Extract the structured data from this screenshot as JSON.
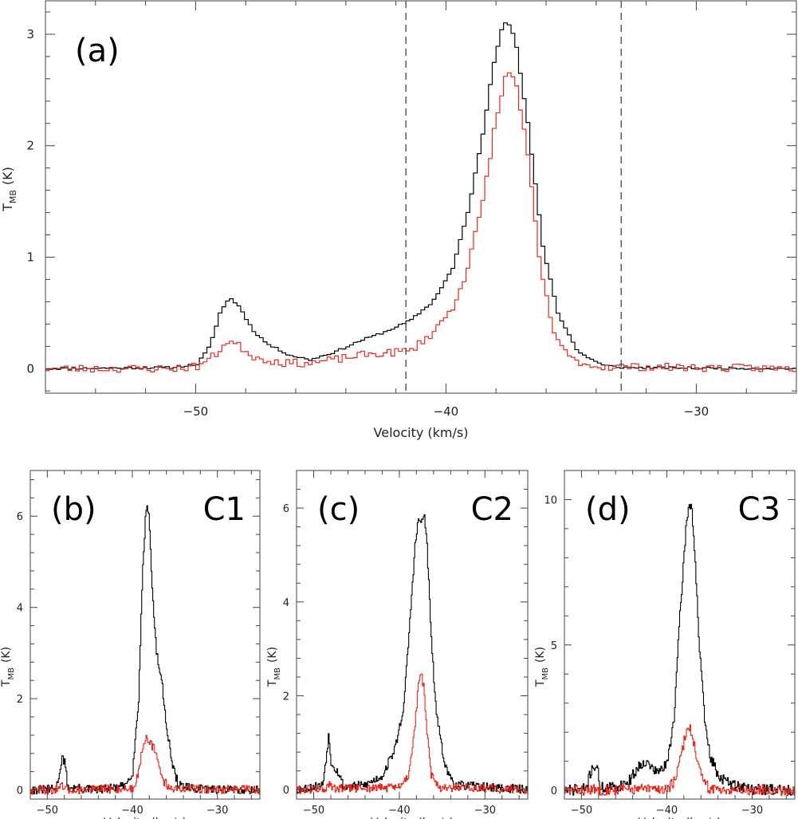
{
  "chart_data": [
    {
      "type": "line",
      "letter": "(a)",
      "name": "",
      "xlabel": "Velocity (km/s)",
      "ylabel_main": "T",
      "ylabel_sub": "MB",
      "ylabel_unit": "(K)",
      "xlim": [
        -56,
        -26
      ],
      "ylim": [
        -0.22,
        3.3
      ],
      "xticks": [
        -50,
        -40,
        -30
      ],
      "yticks": [
        0,
        1,
        2,
        3
      ],
      "vlines": [
        -41.6,
        -33.0
      ],
      "series": [
        {
          "color": "#000000",
          "noise": 0.008,
          "seed": 11,
          "points": [
            [
              -56,
              0.0
            ],
            [
              -51,
              0.01
            ],
            [
              -50,
              0.04
            ],
            [
              -49.5,
              0.2
            ],
            [
              -49.1,
              0.5
            ],
            [
              -48.7,
              0.64
            ],
            [
              -48.3,
              0.55
            ],
            [
              -47.8,
              0.35
            ],
            [
              -47.2,
              0.22
            ],
            [
              -46.3,
              0.12
            ],
            [
              -45.5,
              0.08
            ],
            [
              -44.5,
              0.15
            ],
            [
              -43.5,
              0.25
            ],
            [
              -42.5,
              0.33
            ],
            [
              -41.5,
              0.43
            ],
            [
              -40.6,
              0.6
            ],
            [
              -39.8,
              0.9
            ],
            [
              -39.2,
              1.4
            ],
            [
              -38.6,
              2.1
            ],
            [
              -38.2,
              2.7
            ],
            [
              -37.8,
              3.1
            ],
            [
              -37.6,
              3.12
            ],
            [
              -37.3,
              2.95
            ],
            [
              -36.8,
              2.2
            ],
            [
              -36.2,
              1.1
            ],
            [
              -35.6,
              0.5
            ],
            [
              -34.8,
              0.15
            ],
            [
              -33.8,
              0.03
            ],
            [
              -33,
              0.01
            ],
            [
              -26,
              0.0
            ]
          ]
        },
        {
          "color": "#e8281e",
          "noise": 0.03,
          "seed": 23,
          "points": [
            [
              -56,
              0.0
            ],
            [
              -51,
              0.0
            ],
            [
              -50,
              0.02
            ],
            [
              -49.3,
              0.12
            ],
            [
              -48.8,
              0.25
            ],
            [
              -48.3,
              0.2
            ],
            [
              -47.7,
              0.1
            ],
            [
              -46.5,
              0.05
            ],
            [
              -45.5,
              0.05
            ],
            [
              -44.5,
              0.08
            ],
            [
              -43.5,
              0.12
            ],
            [
              -42.5,
              0.14
            ],
            [
              -41.5,
              0.16
            ],
            [
              -40.6,
              0.32
            ],
            [
              -39.8,
              0.55
            ],
            [
              -39.2,
              0.9
            ],
            [
              -38.6,
              1.5
            ],
            [
              -38.1,
              2.2
            ],
            [
              -37.7,
              2.6
            ],
            [
              -37.5,
              2.68
            ],
            [
              -37.2,
              2.5
            ],
            [
              -36.8,
              1.9
            ],
            [
              -36.3,
              0.9
            ],
            [
              -35.8,
              0.35
            ],
            [
              -35.2,
              0.1
            ],
            [
              -34.2,
              0.02
            ],
            [
              -26,
              0.0
            ]
          ]
        }
      ]
    },
    {
      "type": "line",
      "letter": "(b)",
      "name": "C1",
      "xlabel": "Velocity (km/s)",
      "ylabel_main": "T",
      "ylabel_sub": "MB",
      "ylabel_unit": "(K)",
      "xlim": [
        -52,
        -25
      ],
      "ylim": [
        -0.2,
        7.0
      ],
      "xticks": [
        -50,
        -40,
        -30
      ],
      "yticks": [
        0,
        2,
        4,
        6
      ],
      "vlines": [],
      "series": [
        {
          "color": "#000000",
          "noise": 0.04,
          "seed": 31,
          "points": [
            [
              -52,
              0.0
            ],
            [
              -49,
              0.02
            ],
            [
              -48.6,
              0.4
            ],
            [
              -48.3,
              0.72
            ],
            [
              -48,
              0.6
            ],
            [
              -47.6,
              0.05
            ],
            [
              -44,
              0.0
            ],
            [
              -41,
              0.08
            ],
            [
              -40,
              0.4
            ],
            [
              -39.3,
              2.0
            ],
            [
              -38.8,
              5.0
            ],
            [
              -38.4,
              6.2
            ],
            [
              -38.1,
              6.1
            ],
            [
              -37.7,
              4.4
            ],
            [
              -37.2,
              3.0
            ],
            [
              -36.6,
              2.4
            ],
            [
              -36,
              1.4
            ],
            [
              -35.3,
              0.5
            ],
            [
              -34.6,
              0.12
            ],
            [
              -33,
              0.02
            ],
            [
              -25,
              0.0
            ]
          ]
        },
        {
          "color": "#e8281e",
          "noise": 0.04,
          "seed": 47,
          "points": [
            [
              -52,
              0.0
            ],
            [
              -48.6,
              0.0
            ],
            [
              -48.3,
              0.1
            ],
            [
              -48,
              0.0
            ],
            [
              -40,
              0.03
            ],
            [
              -39.4,
              0.3
            ],
            [
              -38.9,
              0.9
            ],
            [
              -38.4,
              1.2
            ],
            [
              -38,
              1.05
            ],
            [
              -37.5,
              0.9
            ],
            [
              -37,
              0.6
            ],
            [
              -36.4,
              0.2
            ],
            [
              -35.5,
              0.03
            ],
            [
              -25,
              0.0
            ]
          ]
        }
      ]
    },
    {
      "type": "line",
      "letter": "(c)",
      "name": "C2",
      "xlabel": "Velocity (km/s)",
      "ylabel_main": "T",
      "ylabel_sub": "MB",
      "ylabel_unit": "(K)",
      "xlim": [
        -52,
        -25
      ],
      "ylim": [
        -0.2,
        6.8
      ],
      "xticks": [
        -50,
        -40,
        -30
      ],
      "yticks": [
        0,
        2,
        4,
        6
      ],
      "vlines": [],
      "series": [
        {
          "color": "#000000",
          "noise": 0.04,
          "seed": 53,
          "points": [
            [
              -52,
              0.0
            ],
            [
              -49,
              0.1
            ],
            [
              -48.5,
              0.8
            ],
            [
              -48.3,
              1.15
            ],
            [
              -48,
              0.6
            ],
            [
              -47.5,
              0.45
            ],
            [
              -47.1,
              0.35
            ],
            [
              -46.5,
              0.05
            ],
            [
              -44,
              0.1
            ],
            [
              -42,
              0.3
            ],
            [
              -40.5,
              0.9
            ],
            [
              -39.5,
              1.8
            ],
            [
              -38.8,
              3.6
            ],
            [
              -38.2,
              5.2
            ],
            [
              -37.8,
              5.75
            ],
            [
              -37.4,
              5.7
            ],
            [
              -37.1,
              5.85
            ],
            [
              -36.8,
              5.2
            ],
            [
              -36.3,
              3.2
            ],
            [
              -35.8,
              1.8
            ],
            [
              -35.2,
              1.0
            ],
            [
              -34.5,
              0.4
            ],
            [
              -33.5,
              0.1
            ],
            [
              -25,
              0.0
            ]
          ]
        },
        {
          "color": "#e8281e",
          "noise": 0.04,
          "seed": 61,
          "points": [
            [
              -52,
              0.0
            ],
            [
              -48.5,
              0.02
            ],
            [
              -48.2,
              0.12
            ],
            [
              -47.9,
              0.02
            ],
            [
              -40,
              0.05
            ],
            [
              -39,
              0.3
            ],
            [
              -38.3,
              1.2
            ],
            [
              -37.8,
              2.2
            ],
            [
              -37.5,
              2.5
            ],
            [
              -37.2,
              2.2
            ],
            [
              -36.8,
              1.2
            ],
            [
              -36.3,
              0.3
            ],
            [
              -35.5,
              0.05
            ],
            [
              -25,
              0.0
            ]
          ]
        }
      ]
    },
    {
      "type": "line",
      "letter": "(d)",
      "name": "C3",
      "xlabel": "Velocity (km/s)",
      "ylabel_main": "T",
      "ylabel_sub": "MB",
      "ylabel_unit": "(K)",
      "xlim": [
        -52,
        -25
      ],
      "ylim": [
        -0.3,
        11.0
      ],
      "xticks": [
        -50,
        -40,
        -30
      ],
      "yticks": [
        0,
        5,
        10
      ],
      "vlines": [],
      "series": [
        {
          "color": "#000000",
          "noise": 0.05,
          "seed": 71,
          "points": [
            [
              -52,
              0.0
            ],
            [
              -49.5,
              0.05
            ],
            [
              -48.9,
              0.7
            ],
            [
              -48.6,
              0.85
            ],
            [
              -48.2,
              0.75
            ],
            [
              -47.8,
              0.1
            ],
            [
              -46,
              0.1
            ],
            [
              -44.5,
              0.3
            ],
            [
              -43.5,
              0.75
            ],
            [
              -42.8,
              1.0
            ],
            [
              -42,
              0.85
            ],
            [
              -41.2,
              0.6
            ],
            [
              -40,
              0.9
            ],
            [
              -39.2,
              2.5
            ],
            [
              -38.5,
              6.0
            ],
            [
              -37.8,
              9.0
            ],
            [
              -37.4,
              9.9
            ],
            [
              -37.1,
              9.7
            ],
            [
              -36.7,
              7.8
            ],
            [
              -36.2,
              4.8
            ],
            [
              -35.6,
              2.4
            ],
            [
              -35,
              1.2
            ],
            [
              -34,
              0.5
            ],
            [
              -32.5,
              0.2
            ],
            [
              -30,
              0.05
            ],
            [
              -25,
              0.0
            ]
          ]
        },
        {
          "color": "#e8281e",
          "noise": 0.05,
          "seed": 83,
          "points": [
            [
              -52,
              0.0
            ],
            [
              -40,
              0.05
            ],
            [
              -39,
              0.35
            ],
            [
              -38.3,
              1.3
            ],
            [
              -37.7,
              2.1
            ],
            [
              -37.3,
              2.15
            ],
            [
              -36.9,
              1.7
            ],
            [
              -36.4,
              0.9
            ],
            [
              -35.8,
              0.3
            ],
            [
              -35,
              0.05
            ],
            [
              -25,
              0.0
            ]
          ]
        }
      ]
    }
  ]
}
